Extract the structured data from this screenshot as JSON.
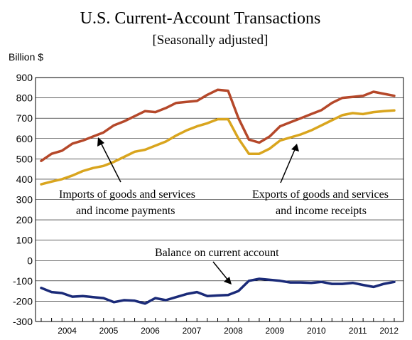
{
  "chart_data": {
    "type": "line",
    "title": "U.S. Current-Account Transactions",
    "subtitle": "[Seasonally adjusted]",
    "ylabel": "Billion $",
    "xlabel": "",
    "ylim": [
      -300,
      900
    ],
    "yticks": [
      900,
      800,
      700,
      600,
      500,
      400,
      300,
      200,
      100,
      0,
      -100,
      -200,
      -300
    ],
    "year_labels": [
      "2004",
      "2005",
      "2006",
      "2007",
      "2008",
      "2009",
      "2010",
      "2011",
      "2012"
    ],
    "x": [
      "2003Q4",
      "2004Q1",
      "2004Q2",
      "2004Q3",
      "2004Q4",
      "2005Q1",
      "2005Q2",
      "2005Q3",
      "2005Q4",
      "2006Q1",
      "2006Q2",
      "2006Q3",
      "2006Q4",
      "2007Q1",
      "2007Q2",
      "2007Q3",
      "2007Q4",
      "2008Q1",
      "2008Q2",
      "2008Q3",
      "2008Q4",
      "2009Q1",
      "2009Q2",
      "2009Q3",
      "2009Q4",
      "2010Q1",
      "2010Q2",
      "2010Q3",
      "2010Q4",
      "2011Q1",
      "2011Q2",
      "2011Q3",
      "2011Q4",
      "2012Q1",
      "2012Q2"
    ],
    "grid": true,
    "series": [
      {
        "name": "Imports of goods and services and income payments",
        "color": "#B5482A",
        "values": [
          490,
          525,
          540,
          575,
          590,
          610,
          630,
          665,
          685,
          710,
          735,
          730,
          750,
          775,
          780,
          785,
          815,
          840,
          835,
          700,
          595,
          580,
          610,
          660,
          680,
          700,
          720,
          740,
          775,
          800,
          805,
          810,
          830,
          820,
          810
        ]
      },
      {
        "name": "Exports of goods and services and income receipts",
        "color": "#D9A51E",
        "values": [
          375,
          388,
          400,
          418,
          440,
          455,
          465,
          485,
          510,
          535,
          545,
          565,
          585,
          615,
          640,
          660,
          675,
          695,
          695,
          600,
          525,
          525,
          550,
          590,
          605,
          620,
          640,
          665,
          690,
          715,
          725,
          720,
          730,
          735,
          738
        ]
      },
      {
        "name": "Balance on current account",
        "color": "#1A2A78",
        "values": [
          -135,
          -155,
          -160,
          -178,
          -175,
          -180,
          -185,
          -205,
          -195,
          -198,
          -212,
          -185,
          -195,
          -180,
          -165,
          -155,
          -175,
          -172,
          -170,
          -150,
          -100,
          -90,
          -95,
          -100,
          -108,
          -108,
          -110,
          -105,
          -115,
          -115,
          -110,
          -120,
          -130,
          -115,
          -105
        ]
      }
    ],
    "annotations": [
      {
        "line1": "Imports of goods and services",
        "line2": "and income payments"
      },
      {
        "line1": "Exports of goods and services",
        "line2": "and income receipts"
      },
      {
        "line1": "Balance on current account"
      }
    ]
  }
}
